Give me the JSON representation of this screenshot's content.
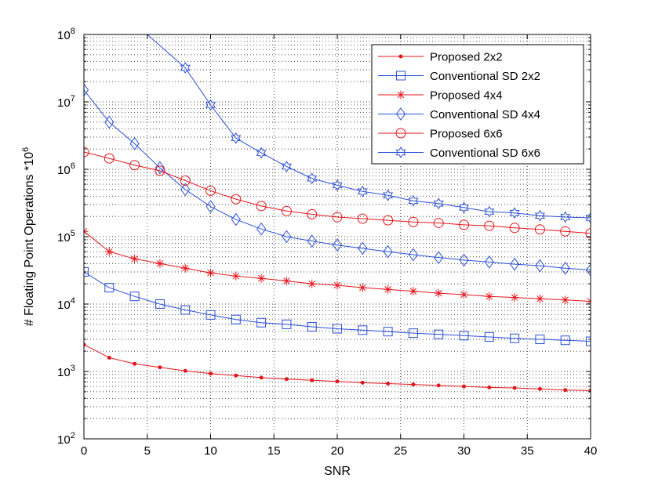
{
  "chart_data": {
    "type": "line",
    "title": "",
    "xlabel": "SNR",
    "ylabel": "# Floating Point Operations *10",
    "ylabel_superscript": "6",
    "x_scale": "linear",
    "y_scale": "log",
    "xlim": [
      0,
      40
    ],
    "ylim": [
      100,
      100000000
    ],
    "grid": true,
    "legend_position": "top-right",
    "x_ticks": [
      0,
      5,
      10,
      15,
      20,
      25,
      30,
      35,
      40
    ],
    "x_tick_labels": [
      "0",
      "5",
      "10",
      "15",
      "20",
      "25",
      "30",
      "35",
      "40"
    ],
    "y_ticks": [
      {
        "value": 100,
        "base": "10",
        "exp": "2"
      },
      {
        "value": 1000,
        "base": "10",
        "exp": "3"
      },
      {
        "value": 10000,
        "base": "10",
        "exp": "4"
      },
      {
        "value": 100000,
        "base": "10",
        "exp": "5"
      },
      {
        "value": 1000000,
        "base": "10",
        "exp": "6"
      },
      {
        "value": 10000000,
        "base": "10",
        "exp": "7"
      },
      {
        "value": 100000000,
        "base": "10",
        "exp": "8"
      }
    ],
    "x": [
      0,
      2,
      4,
      6,
      8,
      10,
      12,
      14,
      16,
      18,
      20,
      22,
      24,
      26,
      28,
      30,
      32,
      34,
      36,
      38,
      40
    ],
    "series": [
      {
        "name": "Proposed 2x2",
        "color": "#e8141a",
        "marker": "dot",
        "values": [
          2500,
          1600,
          1300,
          1150,
          1020,
          930,
          870,
          810,
          770,
          740,
          710,
          680,
          660,
          640,
          620,
          600,
          580,
          570,
          550,
          530,
          520
        ]
      },
      {
        "name": "Conventional SD 2x2",
        "color": "#2b50d8",
        "marker": "square",
        "values": [
          30000,
          17500,
          13000,
          10000,
          8200,
          6900,
          5900,
          5300,
          5000,
          4600,
          4300,
          4100,
          3900,
          3700,
          3550,
          3400,
          3250,
          3100,
          3000,
          2900,
          2800
        ]
      },
      {
        "name": "Proposed 4x4",
        "color": "#e8141a",
        "marker": "star",
        "values": [
          120000,
          60000,
          47000,
          40000,
          34000,
          29000,
          26000,
          24000,
          22000,
          20000,
          19000,
          17500,
          16500,
          15500,
          14500,
          13800,
          13000,
          12500,
          12000,
          11500,
          11000
        ]
      },
      {
        "name": "Conventional SD 4x4",
        "color": "#2b50d8",
        "marker": "diamond",
        "values": [
          15000000,
          5000000,
          2400000,
          1050000,
          500000,
          280000,
          180000,
          130000,
          100000,
          86000,
          75000,
          67000,
          60000,
          54000,
          49000,
          45000,
          42000,
          39000,
          37000,
          34000,
          32000
        ]
      },
      {
        "name": "Proposed 6x6",
        "color": "#e8141a",
        "marker": "circle",
        "values": [
          1800000,
          1450000,
          1150000,
          950000,
          680000,
          480000,
          360000,
          285000,
          240000,
          215000,
          195000,
          185000,
          175000,
          165000,
          160000,
          150000,
          145000,
          135000,
          128000,
          120000,
          112000
        ]
      },
      {
        "name": "Conventional SD 6x6",
        "color": "#2b50d8",
        "marker": "hexagram",
        "x": [
          5,
          8,
          10,
          12,
          14,
          16,
          18,
          20,
          22,
          24,
          26,
          28,
          30,
          32,
          34,
          36,
          38,
          40
        ],
        "marker_start": 1,
        "values": [
          100000000,
          32000000,
          9000000,
          2900000,
          1750000,
          1100000,
          730000,
          580000,
          470000,
          410000,
          340000,
          310000,
          270000,
          235000,
          225000,
          205000,
          195000,
          190000
        ]
      }
    ]
  }
}
